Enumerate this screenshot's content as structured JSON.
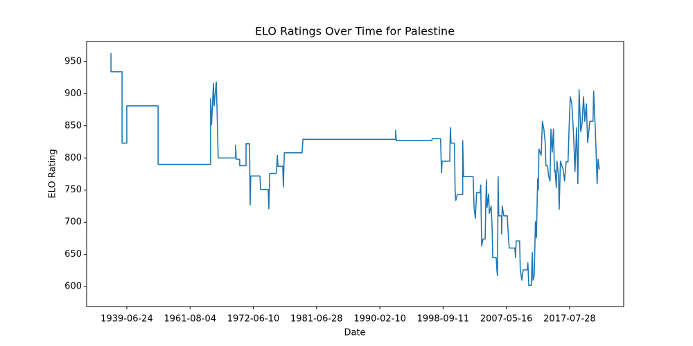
{
  "chart_data": {
    "type": "line",
    "title": "ELO Ratings Over Time for Palestine",
    "x_label": "Date",
    "y_label": "ELO Rating",
    "color": "#1f77b4",
    "x": [
      0,
      0,
      3.5,
      3.5,
      3.5,
      5.0,
      5.0,
      14.9,
      14.9,
      31.5,
      31.5,
      31.8,
      32.4,
      32.6,
      33.3,
      33.5,
      33.9,
      39.4,
      39.4,
      39.6,
      40.7,
      40.7,
      42.7,
      42.7,
      43.8,
      44.0,
      44.2,
      47.1,
      47.3,
      49.7,
      49.9,
      50.2,
      52.3,
      52.6,
      52.8,
      54.3,
      54.5,
      54.8,
      60.4,
      60.7,
      90.0,
      90.0,
      90.2,
      101.4,
      101.6,
      104.2,
      104.5,
      104.7,
      107.1,
      107.3,
      107.5,
      108.6,
      108.8,
      109.0,
      109.5,
      111.2,
      111.2,
      111.5,
      114.5,
      114.8,
      115.2,
      115.6,
      116.7,
      116.9,
      117.2,
      117.6,
      118.3,
      118.5,
      118.7,
      118.9,
      119.4,
      119.6,
      120.2,
      120.5,
      120.7,
      121.8,
      122.0,
      122.2,
      122.4,
      122.6,
      123.5,
      123.5,
      123.7,
      124.2,
      125.3,
      125.5,
      125.9,
      127.7,
      127.9,
      128.1,
      129.2,
      129.4,
      129.9,
      130.3,
      131.6,
      131.8,
      132.1,
      132.9,
      133.2,
      133.4,
      133.8,
      134.2,
      134.5,
      134.9,
      135.1,
      135.3,
      136.0,
      136.4,
      136.9,
      137.3,
      137.5,
      138.0,
      138.4,
      138.8,
      139.1,
      139.5,
      139.9,
      140.2,
      140.4,
      140.8,
      141.0,
      141.5,
      141.7,
      142.1,
      143.0,
      143.4,
      143.9,
      144.5,
      144.8,
      145.2,
      145.7,
      146.2,
      146.7,
      147.2,
      147.6,
      148.0,
      148.5,
      148.9,
      149.4,
      149.8,
      150.3,
      150.7,
      151.4,
      152.4,
      152.6,
      153.1,
      153.3,
      153.7,
      154.0,
      154.4
    ],
    "values": [
      963,
      934,
      934,
      874,
      823,
      823,
      881,
      881,
      790,
      790,
      892,
      852,
      916,
      881,
      918,
      881,
      800,
      800,
      820,
      798,
      798,
      788,
      788,
      822,
      822,
      727,
      772,
      772,
      751,
      751,
      721,
      776,
      776,
      804,
      787,
      787,
      755,
      808,
      808,
      829,
      829,
      843,
      827,
      827,
      830,
      830,
      777,
      795,
      795,
      847,
      823,
      823,
      749,
      734,
      743,
      743,
      827,
      771,
      771,
      723,
      706,
      746,
      746,
      758,
      663,
      674,
      674,
      728,
      766,
      723,
      744,
      714,
      725,
      690,
      645,
      645,
      626,
      617,
      771,
      710,
      710,
      682,
      725,
      710,
      710,
      690,
      660,
      660,
      645,
      671,
      671,
      626,
      610,
      626,
      626,
      637,
      602,
      602,
      653,
      610,
      617,
      701,
      676,
      768,
      750,
      814,
      804,
      857,
      843,
      822,
      788,
      788,
      771,
      764,
      845,
      809,
      845,
      779,
      781,
      754,
      795,
      771,
      720,
      795,
      781,
      764,
      794,
      794,
      841,
      895,
      884,
      841,
      779,
      847,
      760,
      906,
      841,
      852,
      895,
      857,
      884,
      824,
      857,
      857,
      904,
      847,
      820,
      760,
      798,
      782
    ],
    "xlim": [
      -7.7,
      162.1
    ],
    "xticks": [
      {
        "value": 5,
        "label": "1939-06-24"
      },
      {
        "value": 25,
        "label": "1961-08-04"
      },
      {
        "value": 45,
        "label": "1972-06-10"
      },
      {
        "value": 65,
        "label": "1981-06-28"
      },
      {
        "value": 85,
        "label": "1990-02-10"
      },
      {
        "value": 105,
        "label": "1998-09-11"
      },
      {
        "value": 125,
        "label": "2007-05-16"
      },
      {
        "value": 145,
        "label": "2017-07-28"
      }
    ],
    "ylim": [
      569,
      981
    ],
    "yticks": [
      600,
      650,
      700,
      750,
      800,
      850,
      900,
      950
    ]
  }
}
